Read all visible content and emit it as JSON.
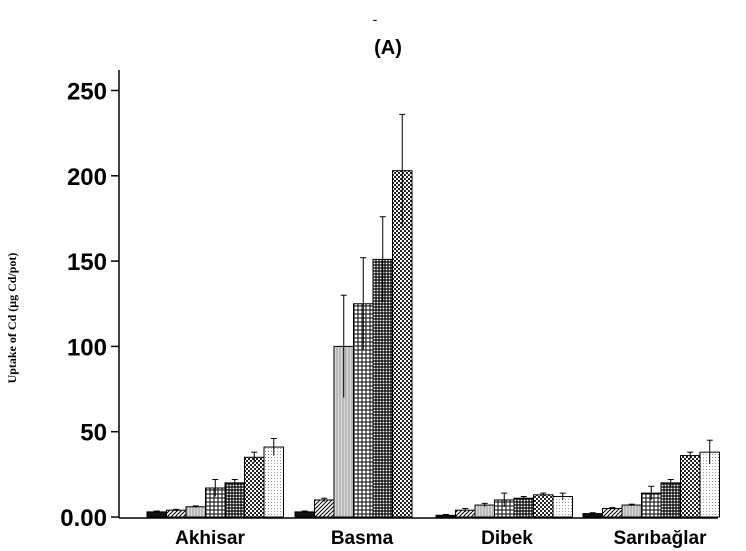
{
  "chart_data": {
    "type": "bar",
    "title": "(A)",
    "ylabel": "Uptake of Cd (μg Cd/pot)",
    "xlabel": "",
    "ylim": [
      0,
      260
    ],
    "yticks": [
      "0.00",
      "50",
      "100",
      "150",
      "200",
      "250"
    ],
    "ytick_values": [
      0,
      50,
      100,
      150,
      200,
      250
    ],
    "categories": [
      "Akhisar",
      "Basma",
      "Dibek",
      "Sarıbağlar"
    ],
    "grid": false,
    "legend": "none",
    "series": [
      {
        "values": [
          3,
          3,
          1,
          2
        ],
        "errors": [
          0.5,
          0.5,
          0.5,
          0.5
        ]
      },
      {
        "values": [
          4,
          10,
          4,
          5
        ],
        "errors": [
          0.5,
          1,
          1,
          0.5
        ]
      },
      {
        "values": [
          6,
          100,
          7,
          7
        ],
        "errors": [
          0.5,
          30,
          1,
          0.5
        ]
      },
      {
        "values": [
          17,
          125,
          10,
          14
        ],
        "errors": [
          5,
          27,
          4,
          4
        ]
      },
      {
        "values": [
          20,
          151,
          11,
          20
        ],
        "errors": [
          2,
          25,
          1,
          2
        ]
      },
      {
        "values": [
          35,
          203,
          13,
          36
        ],
        "errors": [
          3,
          33,
          1,
          2
        ]
      },
      {
        "values": [
          41,
          0,
          12,
          38
        ],
        "errors": [
          5,
          0,
          2,
          7
        ]
      }
    ]
  }
}
